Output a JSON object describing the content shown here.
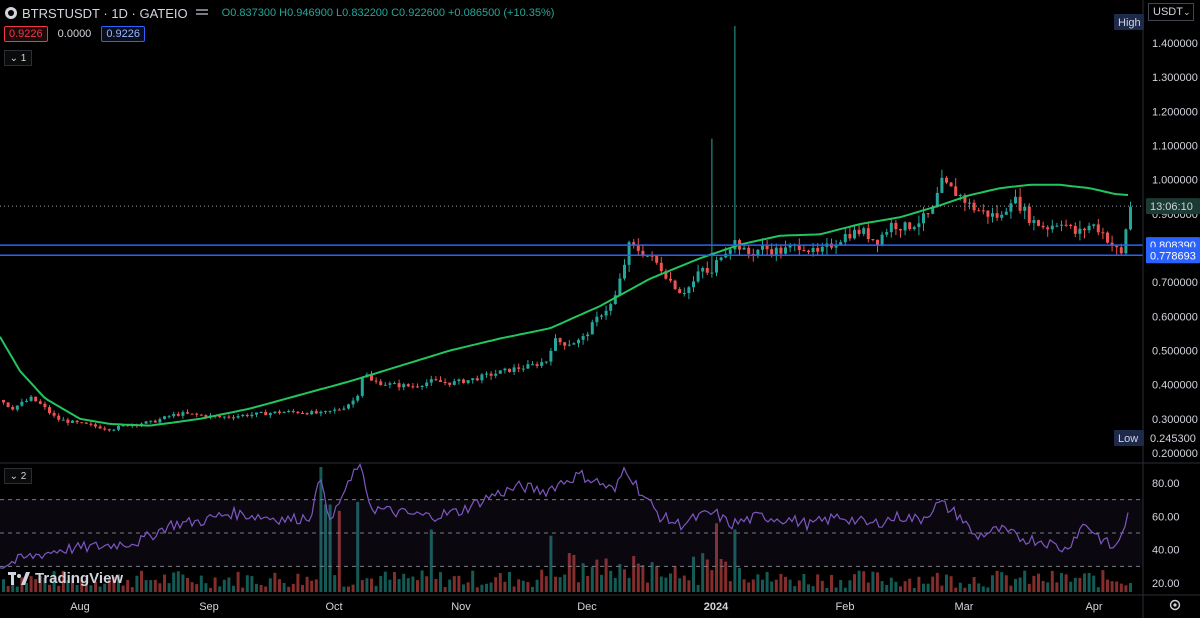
{
  "header": {
    "symbol": "BTRSTUSDT · 1D · GATEIO",
    "open": "O0.837300",
    "high": "H0.946900",
    "low": "L0.832200",
    "close": "C0.922600",
    "change": "+0.086500 (+10.35%)",
    "sell_price": "0.9226",
    "spread": "0.0000",
    "buy_price": "0.9226",
    "pane1_label": "1",
    "pane2_label": "2",
    "currency": "USDT",
    "logo_text": "TradingView"
  },
  "colors": {
    "up": "#26a69a",
    "down": "#ef5350",
    "ma": "#22c55e",
    "rsi": "#7e57c2",
    "hline": "#2962ff"
  },
  "chart_data": [
    {
      "type": "candlestick",
      "title": "",
      "y_ticks": [
        "1.400000",
        "1.300000",
        "1.200000",
        "1.100000",
        "1.000000",
        "0.900000",
        "0.700000",
        "0.600000",
        "0.500000",
        "0.400000",
        "0.300000",
        "0.200000"
      ],
      "ylim": [
        0.18,
        1.47
      ],
      "x_labels": [
        "Aug",
        "Sep",
        "Oct",
        "Nov",
        "Dec",
        "2024",
        "Feb",
        "Mar",
        "Apr"
      ],
      "price_labels": {
        "high_tag": "High",
        "low_tag": "Low",
        "low_value": "0.245300",
        "countdown": "13:06:10",
        "level_1": "0.808390",
        "level_2": "0.778693"
      },
      "levels": [
        0.80839,
        0.778693
      ],
      "last_price": 0.9226,
      "ma_keypoints": [
        [
          0,
          0.54
        ],
        [
          20,
          0.44
        ],
        [
          45,
          0.36
        ],
        [
          80,
          0.3
        ],
        [
          110,
          0.285
        ],
        [
          150,
          0.28
        ],
        [
          200,
          0.3
        ],
        [
          250,
          0.33
        ],
        [
          300,
          0.37
        ],
        [
          350,
          0.41
        ],
        [
          400,
          0.455
        ],
        [
          450,
          0.5
        ],
        [
          500,
          0.535
        ],
        [
          550,
          0.565
        ],
        [
          600,
          0.63
        ],
        [
          650,
          0.71
        ],
        [
          700,
          0.77
        ],
        [
          740,
          0.81
        ],
        [
          780,
          0.836
        ],
        [
          820,
          0.84
        ],
        [
          860,
          0.87
        ],
        [
          900,
          0.89
        ],
        [
          940,
          0.925
        ],
        [
          970,
          0.955
        ],
        [
          1000,
          0.975
        ],
        [
          1030,
          0.985
        ],
        [
          1060,
          0.985
        ],
        [
          1090,
          0.975
        ],
        [
          1115,
          0.958
        ],
        [
          1128,
          0.955
        ]
      ],
      "close_keypoints": [
        [
          0,
          0.355
        ],
        [
          10,
          0.33
        ],
        [
          20,
          0.345
        ],
        [
          30,
          0.36
        ],
        [
          40,
          0.34
        ],
        [
          55,
          0.3
        ],
        [
          70,
          0.29
        ],
        [
          90,
          0.28
        ],
        [
          110,
          0.27
        ],
        [
          130,
          0.285
        ],
        [
          150,
          0.29
        ],
        [
          170,
          0.31
        ],
        [
          180,
          0.315
        ],
        [
          200,
          0.31
        ],
        [
          220,
          0.305
        ],
        [
          240,
          0.31
        ],
        [
          260,
          0.315
        ],
        [
          280,
          0.32
        ],
        [
          300,
          0.32
        ],
        [
          320,
          0.315
        ],
        [
          340,
          0.33
        ],
        [
          355,
          0.36
        ],
        [
          362,
          0.44
        ],
        [
          370,
          0.41
        ],
        [
          390,
          0.4
        ],
        [
          410,
          0.395
        ],
        [
          430,
          0.41
        ],
        [
          450,
          0.405
        ],
        [
          470,
          0.415
        ],
        [
          490,
          0.43
        ],
        [
          510,
          0.445
        ],
        [
          530,
          0.455
        ],
        [
          545,
          0.47
        ],
        [
          552,
          0.53
        ],
        [
          565,
          0.52
        ],
        [
          580,
          0.53
        ],
        [
          590,
          0.57
        ],
        [
          600,
          0.61
        ],
        [
          612,
          0.64
        ],
        [
          620,
          0.72
        ],
        [
          628,
          0.81
        ],
        [
          640,
          0.79
        ],
        [
          650,
          0.77
        ],
        [
          660,
          0.74
        ],
        [
          670,
          0.7
        ],
        [
          680,
          0.67
        ],
        [
          690,
          0.69
        ],
        [
          700,
          0.74
        ],
        [
          710,
          0.72
        ],
        [
          718,
          0.78
        ],
        [
          726,
          0.8
        ],
        [
          734,
          0.82
        ],
        [
          745,
          0.78
        ],
        [
          760,
          0.8
        ],
        [
          780,
          0.79
        ],
        [
          800,
          0.81
        ],
        [
          815,
          0.78
        ],
        [
          830,
          0.81
        ],
        [
          845,
          0.84
        ],
        [
          860,
          0.85
        ],
        [
          875,
          0.82
        ],
        [
          890,
          0.87
        ],
        [
          905,
          0.86
        ],
        [
          918,
          0.88
        ],
        [
          930,
          0.9
        ],
        [
          940,
          0.99
        ],
        [
          950,
          0.97
        ],
        [
          960,
          0.95
        ],
        [
          970,
          0.92
        ],
        [
          985,
          0.9
        ],
        [
          1000,
          0.89
        ],
        [
          1010,
          0.95
        ],
        [
          1020,
          0.92
        ],
        [
          1030,
          0.88
        ],
        [
          1045,
          0.86
        ],
        [
          1060,
          0.88
        ],
        [
          1075,
          0.84
        ],
        [
          1090,
          0.87
        ],
        [
          1100,
          0.85
        ],
        [
          1110,
          0.81
        ],
        [
          1120,
          0.78
        ],
        [
          1128,
          0.92
        ]
      ],
      "spikes": [
        [
          712,
          1.12
        ],
        [
          734,
          1.45
        ]
      ],
      "volume_highlights": [
        [
          320,
          1.0
        ],
        [
          326,
          0.7
        ],
        [
          338,
          0.65
        ],
        [
          355,
          0.72
        ],
        [
          430,
          0.5
        ],
        [
          548,
          0.45
        ],
        [
          716,
          0.55
        ],
        [
          734,
          0.5
        ]
      ]
    },
    {
      "type": "line",
      "title": "",
      "y_ticks": [
        "80.00",
        "60.00",
        "40.00",
        "20.00"
      ],
      "ylim": [
        0,
        100
      ],
      "bands": [
        70,
        50,
        30
      ],
      "rsi_keypoints": [
        [
          0,
          30
        ],
        [
          25,
          35
        ],
        [
          60,
          40
        ],
        [
          100,
          42
        ],
        [
          140,
          45
        ],
        [
          170,
          55
        ],
        [
          200,
          57
        ],
        [
          230,
          62
        ],
        [
          260,
          60
        ],
        [
          290,
          58
        ],
        [
          310,
          60
        ],
        [
          322,
          85
        ],
        [
          330,
          55
        ],
        [
          340,
          70
        ],
        [
          350,
          80
        ],
        [
          358,
          92
        ],
        [
          372,
          65
        ],
        [
          400,
          62
        ],
        [
          430,
          60
        ],
        [
          460,
          63
        ],
        [
          490,
          72
        ],
        [
          520,
          78
        ],
        [
          545,
          75
        ],
        [
          560,
          80
        ],
        [
          580,
          85
        ],
        [
          600,
          80
        ],
        [
          615,
          75
        ],
        [
          625,
          90
        ],
        [
          640,
          75
        ],
        [
          660,
          60
        ],
        [
          680,
          55
        ],
        [
          700,
          60
        ],
        [
          715,
          62
        ],
        [
          730,
          55
        ],
        [
          760,
          60
        ],
        [
          790,
          58
        ],
        [
          810,
          55
        ],
        [
          840,
          60
        ],
        [
          870,
          55
        ],
        [
          900,
          60
        ],
        [
          920,
          58
        ],
        [
          940,
          68
        ],
        [
          960,
          60
        ],
        [
          975,
          48
        ],
        [
          1000,
          52
        ],
        [
          1020,
          47
        ],
        [
          1045,
          45
        ],
        [
          1065,
          40
        ],
        [
          1085,
          56
        ],
        [
          1100,
          47
        ],
        [
          1115,
          40
        ],
        [
          1128,
          60
        ]
      ]
    }
  ]
}
